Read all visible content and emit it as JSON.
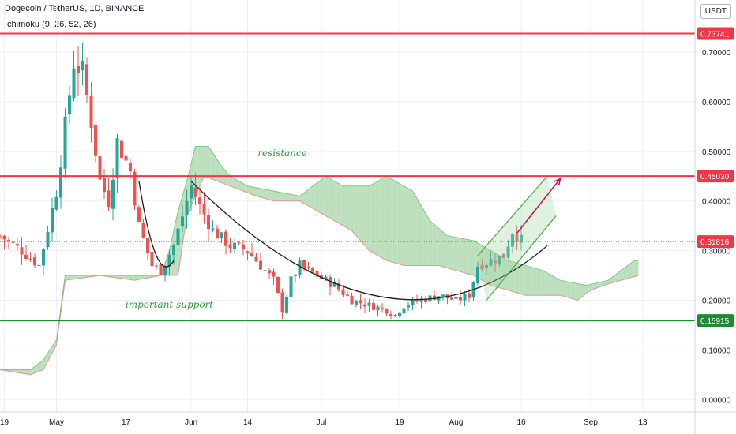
{
  "header": {
    "title": "Dogecoin / TetherUS, 1D, BINANCE",
    "indicator": "Ichimoku (9, 26, 52, 26)",
    "currency": "USDT"
  },
  "chart_data": {
    "type": "candlestick",
    "y_ticks": [
      "0.70000",
      "0.60000",
      "0.50000",
      "0.40000",
      "0.30000",
      "0.20000",
      "0.10000",
      "0.00000"
    ],
    "y_tick_values": [
      0.7,
      0.6,
      0.5,
      0.4,
      0.3,
      0.2,
      0.1,
      0.0
    ],
    "ylim": [
      -0.025,
      0.805
    ],
    "x_ticks": [
      "19",
      "May",
      "17",
      "Jun",
      "14",
      "Jul",
      "19",
      "Aug",
      "16",
      "Sep",
      "13"
    ],
    "x_tick_days": [
      -12,
      0,
      16,
      31,
      44,
      61,
      79,
      92,
      107,
      123,
      135
    ],
    "x_range_days": [
      -13,
      147
    ],
    "price_levels": [
      {
        "label": "0.73741",
        "value": 0.73741,
        "color": "#f23645"
      },
      {
        "label": "0.45030",
        "value": 0.4503,
        "color": "#f23645"
      },
      {
        "label": "0.15915",
        "value": 0.15915,
        "color": "#1e8a32"
      }
    ],
    "current_price": {
      "label": "0.31816",
      "value": 0.31816,
      "color": "#f23645"
    },
    "annotations": [
      {
        "text": "resistance",
        "day": 52,
        "price": 0.49
      },
      {
        "text": "important support",
        "day": 26,
        "price": 0.185
      }
    ],
    "colors": {
      "up": "#26a69a",
      "down": "#ef5350",
      "cloud_up": "#a5d6a7",
      "cloud_down": "#f7a5a5"
    },
    "candle_key_points": [
      [
        -13,
        0.33
      ],
      [
        -8,
        0.3
      ],
      [
        -4,
        0.27
      ],
      [
        0,
        0.42
      ],
      [
        4,
        0.68
      ],
      [
        6,
        0.66
      ],
      [
        8,
        0.56
      ],
      [
        10,
        0.44
      ],
      [
        12,
        0.4
      ],
      [
        14,
        0.52
      ],
      [
        17,
        0.46
      ],
      [
        19,
        0.35
      ],
      [
        22,
        0.27
      ],
      [
        24,
        0.26
      ],
      [
        27,
        0.31
      ],
      [
        29,
        0.37
      ],
      [
        31,
        0.43
      ],
      [
        33,
        0.39
      ],
      [
        36,
        0.34
      ],
      [
        40,
        0.31
      ],
      [
        44,
        0.3
      ],
      [
        47,
        0.27
      ],
      [
        50,
        0.24
      ],
      [
        52,
        0.18
      ],
      [
        54,
        0.24
      ],
      [
        56,
        0.27
      ],
      [
        60,
        0.25
      ],
      [
        64,
        0.23
      ],
      [
        68,
        0.2
      ],
      [
        72,
        0.19
      ],
      [
        76,
        0.18
      ],
      [
        78,
        0.17
      ],
      [
        80,
        0.19
      ],
      [
        84,
        0.2
      ],
      [
        88,
        0.21
      ],
      [
        92,
        0.2
      ],
      [
        95,
        0.21
      ],
      [
        97,
        0.27
      ],
      [
        100,
        0.28
      ],
      [
        103,
        0.29
      ],
      [
        105,
        0.34
      ],
      [
        107,
        0.32
      ]
    ],
    "cloud_a": [
      [
        -13,
        0.06
      ],
      [
        -6,
        0.06
      ],
      [
        -3,
        0.08
      ],
      [
        0,
        0.12
      ],
      [
        2,
        0.25
      ],
      [
        10,
        0.25
      ],
      [
        18,
        0.25
      ],
      [
        24,
        0.25
      ],
      [
        26,
        0.3
      ],
      [
        28,
        0.38
      ],
      [
        30,
        0.44
      ],
      [
        32,
        0.51
      ],
      [
        35,
        0.51
      ],
      [
        38,
        0.47
      ],
      [
        40,
        0.45
      ],
      [
        44,
        0.43
      ],
      [
        50,
        0.42
      ],
      [
        56,
        0.41
      ],
      [
        62,
        0.45
      ],
      [
        66,
        0.43
      ],
      [
        72,
        0.43
      ],
      [
        76,
        0.45
      ],
      [
        82,
        0.42
      ],
      [
        86,
        0.36
      ],
      [
        90,
        0.33
      ],
      [
        96,
        0.32
      ],
      [
        100,
        0.3
      ],
      [
        104,
        0.28
      ],
      [
        108,
        0.27
      ],
      [
        112,
        0.26
      ],
      [
        116,
        0.24
      ],
      [
        122,
        0.23
      ],
      [
        127,
        0.24
      ],
      [
        130,
        0.26
      ],
      [
        133,
        0.28
      ],
      [
        134,
        0.28
      ]
    ],
    "cloud_b": [
      [
        -13,
        0.06
      ],
      [
        -6,
        0.05
      ],
      [
        -3,
        0.06
      ],
      [
        0,
        0.11
      ],
      [
        2,
        0.24
      ],
      [
        10,
        0.25
      ],
      [
        18,
        0.24
      ],
      [
        24,
        0.25
      ],
      [
        28,
        0.25
      ],
      [
        30,
        0.37
      ],
      [
        34,
        0.45
      ],
      [
        40,
        0.43
      ],
      [
        46,
        0.41
      ],
      [
        50,
        0.4
      ],
      [
        56,
        0.4
      ],
      [
        60,
        0.38
      ],
      [
        64,
        0.36
      ],
      [
        68,
        0.34
      ],
      [
        72,
        0.3
      ],
      [
        76,
        0.28
      ],
      [
        80,
        0.27
      ],
      [
        84,
        0.27
      ],
      [
        88,
        0.27
      ],
      [
        92,
        0.26
      ],
      [
        96,
        0.25
      ],
      [
        100,
        0.23
      ],
      [
        104,
        0.22
      ],
      [
        108,
        0.21
      ],
      [
        112,
        0.21
      ],
      [
        116,
        0.21
      ],
      [
        120,
        0.2
      ],
      [
        123,
        0.22
      ],
      [
        126,
        0.23
      ],
      [
        130,
        0.24
      ],
      [
        134,
        0.25
      ]
    ],
    "cup_curves": [
      [
        [
          19,
          0.44
        ],
        [
          23,
          0.22
        ],
        [
          27,
          0.28
        ]
      ],
      [
        [
          31,
          0.44
        ],
        [
          77,
          0.04
        ],
        [
          113,
          0.31
        ]
      ]
    ],
    "channel_upper": [
      [
        97,
        0.29
      ],
      [
        113,
        0.45
      ]
    ],
    "channel_lower": [
      [
        99,
        0.2
      ],
      [
        115,
        0.37
      ]
    ],
    "projection_arrow": [
      [
        106,
        0.335
      ],
      [
        116,
        0.445
      ]
    ]
  }
}
